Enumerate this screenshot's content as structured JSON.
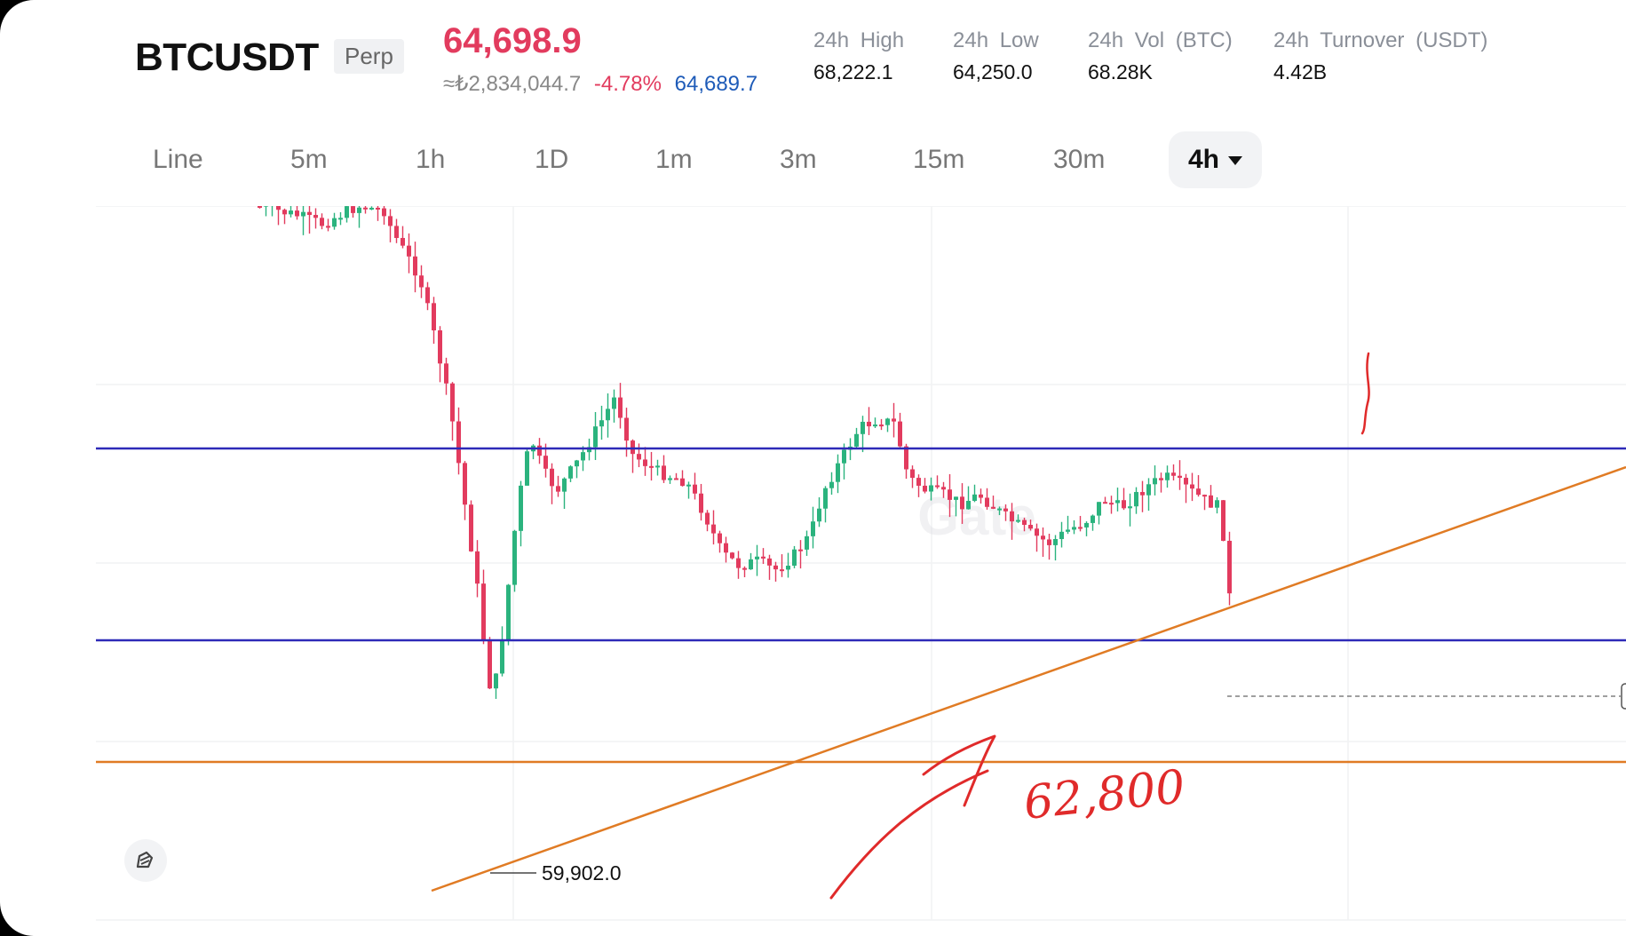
{
  "ticker": {
    "symbol": "BTCUSDT",
    "contract_type": "Perp",
    "last_price": "64,698.9",
    "fiat_equivalent": "≈₺2,834,044.7",
    "change_pct": "-4.78%",
    "mark_price": "64,689.7"
  },
  "stats": [
    {
      "label": "24h High",
      "value": "68,222.1"
    },
    {
      "label": "24h Low",
      "value": "64,250.0"
    },
    {
      "label": "24h Vol (BTC)",
      "value": "68.28K"
    },
    {
      "label": "24h Turnover (USDT)",
      "value": "4.42B"
    }
  ],
  "intervals": [
    "Line",
    "5m",
    "1h",
    "1D",
    "1m",
    "3m",
    "15m",
    "30m",
    "4h"
  ],
  "active_interval": "4h",
  "chart": {
    "low_marker_label": "59,902.0",
    "watermark": "Gate",
    "annotation": "62,800",
    "colors": {
      "up": "#2bb37e",
      "down": "#e23b5e",
      "levels": "#2e2ab8",
      "trend": "#e07b24",
      "drawing": "#e02a2a"
    }
  },
  "icons": {
    "drawing_tool": "drawing-tool-icon",
    "dropdown": "chevron-down-icon"
  }
}
